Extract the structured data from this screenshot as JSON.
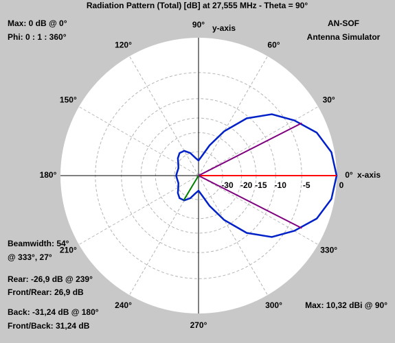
{
  "chart_data": {
    "type": "polar",
    "title": "Radiation Pattern (Total) [dB] at 27,555 MHz - Theta = 90°",
    "x_axis_label": "x-axis",
    "y_axis_label": "y-axis",
    "angles": [
      0,
      10,
      20,
      30,
      40,
      50,
      60,
      70,
      80,
      90,
      100,
      110,
      120,
      130,
      140,
      150,
      160,
      170,
      180,
      190,
      200,
      210,
      220,
      230,
      240,
      250,
      260,
      270,
      280,
      290,
      300,
      310,
      320,
      330,
      340,
      350
    ],
    "series": [
      {
        "color": "#0020c8",
        "values": [
          0,
          -0.4,
          -1.6,
          -3.8,
          -6.3,
          -10.5,
          -17,
          -25,
          -33,
          -38,
          -35,
          -30,
          -27,
          -26.5,
          -28,
          -30.5,
          -32,
          -31.8,
          -31.24,
          -31.8,
          -32,
          -30.5,
          -28,
          -26.5,
          -27,
          -30,
          -35,
          -38,
          -33,
          -25,
          -17,
          -10.5,
          -6.3,
          -3.8,
          -1.6,
          -0.4
        ]
      }
    ],
    "angle_ticks": [
      {
        "value": 0,
        "label": "0°"
      },
      {
        "value": 30,
        "label": "30°"
      },
      {
        "value": 60,
        "label": "60°"
      },
      {
        "value": 90,
        "label": "90°"
      },
      {
        "value": 120,
        "label": "120°"
      },
      {
        "value": 150,
        "label": "150°"
      },
      {
        "value": 180,
        "label": "180°"
      },
      {
        "value": 210,
        "label": "210°"
      },
      {
        "value": 240,
        "label": "240°"
      },
      {
        "value": 270,
        "label": "270°"
      },
      {
        "value": 300,
        "label": "300°"
      },
      {
        "value": 330,
        "label": "330°"
      }
    ],
    "rlim": [
      -40,
      0
    ],
    "rticks": [
      -30,
      -20,
      -15,
      -10,
      -5,
      0
    ],
    "markers": [
      {
        "angle": 0,
        "value": 0,
        "color": "#ff0000"
      },
      {
        "angle": 27,
        "value": -3,
        "color": "#800080"
      },
      {
        "angle": 333,
        "value": -3,
        "color": "#800080"
      },
      {
        "angle": 239,
        "value": -26.9,
        "color": "#008000"
      }
    ],
    "annotations_left_top": [
      "Max: 0 dB @ 0°",
      "Phi: 0 : 1 : 360°"
    ],
    "annotations_right_top": [
      "AN-SOF",
      "Antenna Simulator"
    ],
    "annotations_left_bottom": [
      "Beamwidth: 54°",
      "@ 333°, 27°",
      "Rear: -26,9 dB @ 239°",
      "Front/Rear: 26,9 dB",
      "Back: -31,24 dB @ 180°",
      "Front/Back: 31,24 dB"
    ],
    "annotation_right_bottom": "Max: 10,32 dBi @ 90°"
  }
}
